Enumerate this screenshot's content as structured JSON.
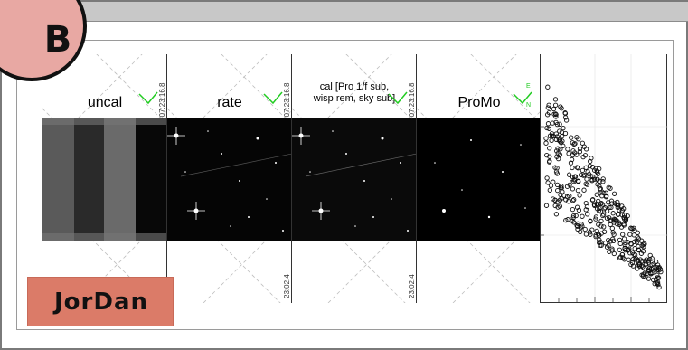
{
  "badge": {
    "letter": "B"
  },
  "name_tag": {
    "text": "JorDan"
  },
  "panels": [
    {
      "title": "uncal",
      "coord_top": "-07:23:16.8",
      "coord_bottom": ""
    },
    {
      "title": "rate",
      "coord_top": "-07:23:16.8",
      "coord_bottom": "23:02.4"
    },
    {
      "title_line1": "cal [Pro 1/f sub,",
      "title_line2": "wisp rem, sky sub]",
      "coord_top": "-07:23:16.8",
      "coord_bottom": "23:02.4"
    },
    {
      "title": "ProMo",
      "compass_e": "E",
      "compass_n": "N"
    }
  ],
  "colors": {
    "badge_fill": "#e8a8a3",
    "tag_fill": "#db7b68",
    "compass": "#22cc22"
  }
}
